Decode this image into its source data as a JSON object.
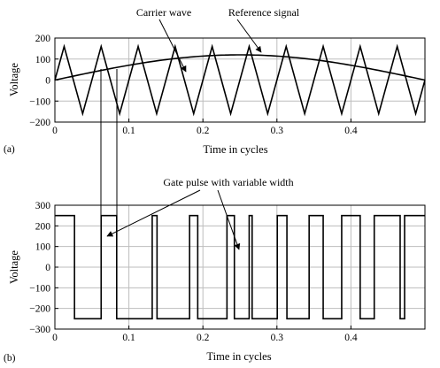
{
  "chart_data": [
    {
      "type": "line",
      "panel_label": "(a)",
      "xlabel": "Time in cycles",
      "ylabel": "Voltage",
      "xlim": [
        0,
        0.5
      ],
      "ylim": [
        -200,
        200
      ],
      "x_ticks": [
        0,
        0.1,
        0.2,
        0.3,
        0.4
      ],
      "x_tick_labels": [
        "0",
        "0.1",
        "0.2",
        "0.3",
        "0.4"
      ],
      "y_ticks": [
        200,
        100,
        0,
        -100,
        -200
      ],
      "y_tick_labels": [
        "200",
        "100",
        "0",
        "−100",
        "−200"
      ],
      "grid": true,
      "series": [
        {
          "name": "Carrier wave",
          "x": [
            0,
            0.0125,
            0.0375,
            0.0625,
            0.0875,
            0.1125,
            0.1375,
            0.1625,
            0.1875,
            0.2125,
            0.2375,
            0.2625,
            0.2875,
            0.3125,
            0.3375,
            0.3625,
            0.3875,
            0.4125,
            0.4375,
            0.4625,
            0.4875,
            0.5
          ],
          "y": [
            0,
            160,
            -160,
            160,
            -160,
            160,
            -160,
            160,
            -160,
            160,
            -160,
            160,
            -160,
            160,
            -160,
            160,
            -160,
            160,
            -160,
            160,
            -160,
            0
          ]
        },
        {
          "name": "Reference signal",
          "amplitude": 120,
          "frequency_cycles": 0.5,
          "x": [
            0,
            0.025,
            0.05,
            0.075,
            0.1,
            0.125,
            0.15,
            0.175,
            0.2,
            0.225,
            0.25,
            0.275,
            0.3,
            0.325,
            0.35,
            0.375,
            0.4,
            0.425,
            0.45,
            0.475,
            0.5
          ],
          "y": [
            0,
            18.8,
            37.1,
            54.5,
            70.5,
            84.9,
            97.1,
            106.9,
            114.1,
            118.5,
            120,
            118.5,
            114.1,
            106.9,
            97.1,
            84.9,
            70.5,
            54.5,
            37.1,
            18.8,
            0
          ]
        }
      ],
      "annotations": [
        {
          "text": "Carrier wave",
          "target_series": "Carrier wave"
        },
        {
          "text": "Reference signal",
          "target_series": "Reference signal"
        }
      ]
    },
    {
      "type": "line",
      "panel_label": "(b)",
      "xlabel": "Time in cycles",
      "ylabel": "Voltage",
      "xlim": [
        0,
        0.5
      ],
      "ylim": [
        -300,
        300
      ],
      "x_ticks": [
        0,
        0.1,
        0.2,
        0.3,
        0.4
      ],
      "x_tick_labels": [
        "0",
        "0.1",
        "0.2",
        "0.3",
        "0.4"
      ],
      "y_ticks": [
        300,
        200,
        100,
        0,
        -100,
        -200,
        -300
      ],
      "y_tick_labels": [
        "300",
        "200",
        "100",
        "0",
        "−100",
        "−200",
        "−300"
      ],
      "grid": true,
      "series": [
        {
          "name": "Gate pulse",
          "levels": [
            250,
            -250
          ],
          "x": [
            0,
            0.0265,
            0.0265,
            0.0625,
            0.0625,
            0.0835,
            0.0835,
            0.1315,
            0.1315,
            0.138,
            0.138,
            0.182,
            0.182,
            0.193,
            0.193,
            0.2325,
            0.2325,
            0.2425,
            0.2425,
            0.2625,
            0.2625,
            0.2665,
            0.2665,
            0.3005,
            0.3005,
            0.3135,
            0.3135,
            0.3435,
            0.3435,
            0.3625,
            0.3625,
            0.3875,
            0.3875,
            0.4125,
            0.4125,
            0.4315,
            0.4315,
            0.4665,
            0.4665,
            0.4725,
            0.4725,
            0.5
          ],
          "y": [
            250,
            250,
            -250,
            -250,
            250,
            250,
            -250,
            -250,
            250,
            250,
            -250,
            -250,
            250,
            250,
            -250,
            -250,
            250,
            250,
            -250,
            -250,
            250,
            250,
            -250,
            -250,
            250,
            250,
            -250,
            -250,
            250,
            250,
            -250,
            -250,
            250,
            250,
            -250,
            -250,
            250,
            250,
            -250,
            -250,
            250,
            250
          ]
        }
      ],
      "annotations": [
        {
          "text": "Gate pulse with variable width"
        }
      ]
    }
  ]
}
